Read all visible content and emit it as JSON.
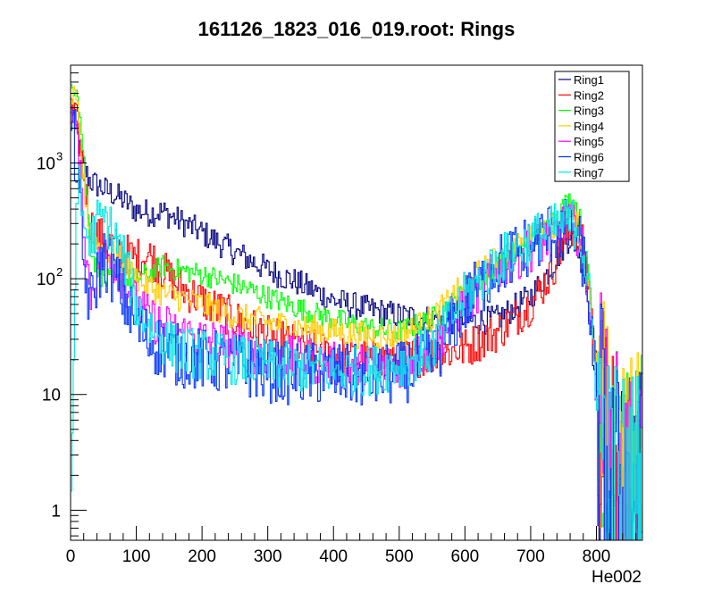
{
  "chart_data": {
    "type": "line",
    "title": "161126_1823_016_019.root: Rings",
    "xlabel": "He002",
    "ylabel": "",
    "xlim": [
      0,
      870
    ],
    "ylim": [
      0.55,
      7000
    ],
    "y_scale": "log",
    "grid": false,
    "legend_position": "top-right",
    "x_ticks": [
      "0",
      "100",
      "200",
      "300",
      "400",
      "500",
      "600",
      "700",
      "800"
    ],
    "y_ticks": [
      {
        "value": 1,
        "base": "1",
        "exp": ""
      },
      {
        "value": 10,
        "base": "10",
        "exp": ""
      },
      {
        "value": 100,
        "base": "10",
        "exp": "2"
      },
      {
        "value": 1000,
        "base": "10",
        "exp": "3"
      }
    ],
    "x": [
      0,
      10,
      20,
      30,
      40,
      50,
      60,
      80,
      100,
      120,
      140,
      160,
      200,
      250,
      300,
      350,
      400,
      450,
      500,
      550,
      600,
      650,
      700,
      730,
      750,
      760,
      770,
      780,
      790,
      800,
      820,
      850,
      870
    ],
    "series": [
      {
        "name": "Ring1",
        "color": "#000080",
        "noise": 0.12,
        "values": [
          3500,
          1800,
          900,
          700,
          650,
          600,
          560,
          480,
          390,
          370,
          380,
          330,
          250,
          170,
          120,
          90,
          65,
          55,
          48,
          45,
          42,
          45,
          70,
          120,
          190,
          230,
          200,
          130,
          50,
          10,
          1.5,
          1.2,
          1.2
        ]
      },
      {
        "name": "Ring2",
        "color": "#ff0000",
        "noise": 0.18,
        "values": [
          3000,
          2100,
          800,
          300,
          240,
          220,
          200,
          170,
          150,
          160,
          120,
          90,
          65,
          45,
          32,
          26,
          22,
          20,
          20,
          22,
          25,
          35,
          60,
          110,
          200,
          260,
          260,
          190,
          80,
          15,
          1.8,
          1.3,
          1.5
        ]
      },
      {
        "name": "Ring3",
        "color": "#00ff00",
        "noise": 0.1,
        "values": [
          4500,
          5000,
          1200,
          200,
          120,
          100,
          95,
          95,
          100,
          110,
          130,
          120,
          110,
          90,
          70,
          55,
          45,
          38,
          35,
          45,
          75,
          130,
          200,
          300,
          420,
          480,
          420,
          250,
          80,
          15,
          1.8,
          1.4,
          1.5
        ]
      },
      {
        "name": "Ring4",
        "color": "#ffcc00",
        "noise": 0.12,
        "values": [
          4000,
          3000,
          700,
          250,
          200,
          180,
          170,
          140,
          100,
          85,
          75,
          70,
          60,
          48,
          42,
          38,
          35,
          32,
          32,
          45,
          90,
          150,
          220,
          280,
          330,
          340,
          300,
          200,
          70,
          15,
          2.5,
          1.8,
          2
        ]
      },
      {
        "name": "Ring5",
        "color": "#ff00ff",
        "noise": 0.2,
        "values": [
          3000,
          1500,
          300,
          70,
          120,
          160,
          150,
          100,
          60,
          45,
          40,
          35,
          30,
          26,
          22,
          20,
          18,
          17,
          18,
          25,
          60,
          120,
          180,
          230,
          280,
          290,
          260,
          170,
          60,
          12,
          1.8,
          1.3,
          1.5
        ]
      },
      {
        "name": "Ring6",
        "color": "#0033ff",
        "noise": 0.28,
        "values": [
          2500,
          900,
          120,
          60,
          100,
          150,
          130,
          70,
          40,
          30,
          25,
          22,
          20,
          18,
          16,
          15,
          15,
          14,
          15,
          20,
          60,
          130,
          200,
          250,
          260,
          260,
          230,
          150,
          55,
          10,
          1.4,
          1.1,
          1.2
        ]
      },
      {
        "name": "Ring7",
        "color": "#00e5e5",
        "noise": 0.22,
        "values": [
          0.6,
          800,
          300,
          200,
          300,
          330,
          280,
          160,
          60,
          40,
          30,
          25,
          22,
          20,
          18,
          17,
          16,
          16,
          18,
          25,
          70,
          140,
          220,
          260,
          300,
          310,
          290,
          180,
          65,
          12,
          1.6,
          1.2,
          1.3
        ]
      }
    ]
  }
}
